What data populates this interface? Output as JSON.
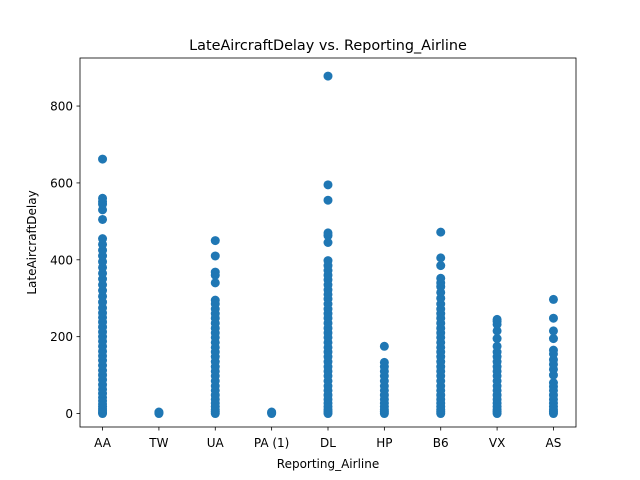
{
  "chart_data": {
    "type": "scatter",
    "title": "LateAircraftDelay vs. Reporting_Airline",
    "xlabel": "Reporting_Airline",
    "ylabel": "LateAircraftDelay",
    "categories": [
      "AA",
      "TW",
      "UA",
      "PA (1)",
      "DL",
      "HP",
      "B6",
      "VX",
      "AS"
    ],
    "ylim": [
      -35,
      925
    ],
    "yticks": [
      0,
      200,
      400,
      600,
      800
    ],
    "grid": false,
    "point_color": "#1f77b4",
    "series": [
      {
        "values": {
          "AA": [
            0,
            3,
            7,
            12,
            18,
            25,
            33,
            42,
            52,
            63,
            75,
            88,
            100,
            112,
            125,
            138,
            150,
            162,
            175,
            188,
            200,
            212,
            225,
            238,
            250,
            262,
            275,
            290,
            305,
            320,
            335,
            350,
            365,
            380,
            395,
            410,
            425,
            440,
            455,
            505,
            530,
            545,
            552,
            560,
            662
          ],
          "TW": [
            0,
            2,
            4
          ],
          "UA": [
            0,
            5,
            10,
            18,
            27,
            37,
            48,
            60,
            72,
            85,
            98,
            110,
            122,
            135,
            148,
            160,
            172,
            185,
            198,
            210,
            222,
            235,
            248,
            260,
            272,
            285,
            295,
            340,
            360,
            368,
            410,
            450
          ],
          "PA (1)": [
            0,
            2,
            4
          ],
          "DL": [
            0,
            5,
            10,
            18,
            27,
            37,
            48,
            60,
            72,
            85,
            98,
            110,
            122,
            135,
            148,
            160,
            172,
            185,
            198,
            210,
            222,
            235,
            248,
            260,
            272,
            285,
            298,
            310,
            322,
            335,
            348,
            360,
            372,
            385,
            398,
            445,
            463,
            470,
            555,
            595,
            878
          ],
          "HP": [
            0,
            5,
            10,
            18,
            27,
            37,
            48,
            60,
            72,
            85,
            98,
            110,
            122,
            133,
            175
          ],
          "B6": [
            0,
            5,
            10,
            18,
            27,
            37,
            48,
            60,
            72,
            85,
            98,
            110,
            122,
            135,
            148,
            160,
            172,
            185,
            198,
            210,
            222,
            235,
            248,
            260,
            272,
            285,
            300,
            315,
            330,
            340,
            352,
            385,
            405,
            472
          ],
          "VX": [
            0,
            5,
            10,
            18,
            27,
            37,
            48,
            60,
            72,
            85,
            98,
            110,
            122,
            135,
            148,
            160,
            175,
            195,
            215,
            232,
            240,
            245
          ],
          "AS": [
            0,
            5,
            10,
            18,
            27,
            37,
            48,
            60,
            70,
            80,
            100,
            115,
            128,
            140,
            155,
            165,
            195,
            215,
            248,
            297
          ]
        }
      }
    ]
  }
}
